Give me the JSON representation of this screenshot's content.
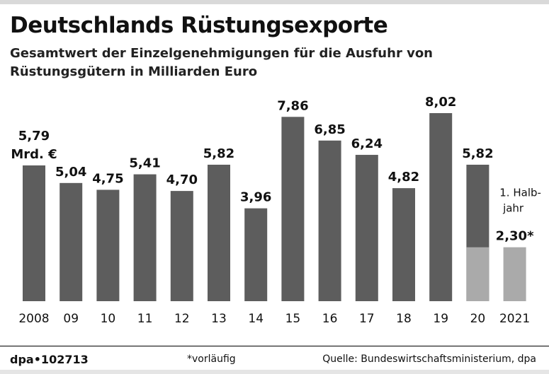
{
  "header": {
    "title": "Deutschlands Rüstungsexporte",
    "subtitle": "Gesamtwert der Einzelgenehmigungen für die Ausfuhr von Rüstungsgütern in Milliarden Euro"
  },
  "chart_data": {
    "type": "bar",
    "title": "Deutschlands Rüstungsexporte",
    "subtitle": "Gesamtwert der Einzelgenehmigungen für die Ausfuhr von Rüstungsgütern in Milliarden Euro",
    "categories": [
      "2008",
      "09",
      "10",
      "11",
      "12",
      "13",
      "14",
      "15",
      "16",
      "17",
      "18",
      "19",
      "20",
      "2021"
    ],
    "values": [
      5.79,
      5.04,
      4.75,
      5.41,
      4.7,
      5.82,
      3.96,
      7.86,
      6.85,
      6.24,
      4.82,
      8.02,
      5.82,
      2.3
    ],
    "value_labels": [
      "5,79",
      "5,04",
      "4,75",
      "5,41",
      "4,70",
      "5,82",
      "3,96",
      "7,86",
      "6,85",
      "6,24",
      "4,82",
      "8,02",
      "5,82",
      "2,30*"
    ],
    "first_bar_unit": "Mrd. €",
    "half_year_note": "1. Halb-jahr",
    "half_year_value": 2.3,
    "highlight_light_category": "2021",
    "ylim": [
      0,
      8.6
    ],
    "grid": false,
    "colors": {
      "bar": "#5d5d5d",
      "bar_light": "#aaaaaa",
      "text": "#111111"
    }
  },
  "footer": {
    "agency": "dpa•102713",
    "note": "*vorläufig",
    "source": "Quelle: Bundeswirtschaftsministerium, dpa"
  }
}
